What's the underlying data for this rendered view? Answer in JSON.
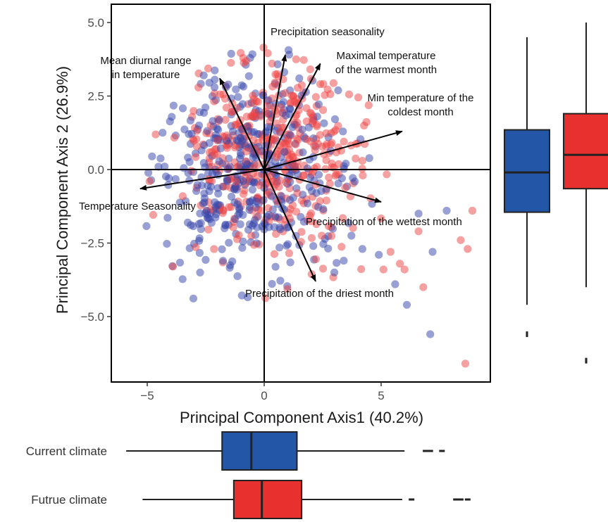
{
  "chart_data": [
    {
      "type": "scatter",
      "subtype": "pca-biplot",
      "xlabel": "Principal Component Axis1 (40.2%)",
      "ylabel": "Principal Component Axis 2 (26.9%)",
      "xlim": [
        -6.4,
        9.6
      ],
      "ylim": [
        -7.2,
        5.4
      ],
      "x_ticks": [
        -5,
        0,
        5
      ],
      "x_tick_labels": [
        "−5",
        "0",
        "5"
      ],
      "y_ticks": [
        5,
        2.5,
        0,
        -2.5,
        -5
      ],
      "y_tick_labels": [
        "5.0",
        "2.5",
        "0.0",
        "−2.5",
        "−5.0"
      ],
      "grid": false,
      "reference_lines": {
        "x": 0,
        "y": 0
      },
      "series_colors": {
        "current": "#3344aa",
        "future": "#ee4444"
      },
      "point_alpha": 0.5,
      "loadings": [
        {
          "label": "Precipitation seasonality",
          "x": 0.9,
          "y": 3.9
        },
        {
          "label": "Mean diurnal range in temperature",
          "x": -1.9,
          "y": 3.1
        },
        {
          "label": "Maximal temperature of the warmest month",
          "x": 2.4,
          "y": 3.6
        },
        {
          "label": "Min temperature of the coldest month",
          "x": 5.9,
          "y": 1.3
        },
        {
          "label": "Temperature Seasonality",
          "x": -5.3,
          "y": -0.65
        },
        {
          "label": "Precipitation of the wettest month",
          "x": 5.0,
          "y": -1.1
        },
        {
          "label": "Precipitation of the driest month",
          "x": 2.2,
          "y": -3.8
        }
      ],
      "loading_label_lines": [
        [
          "Precipitation seasonality"
        ],
        [
          "Mean diurnal range",
          "in temperature"
        ],
        [
          "Maximal temperature",
          "of the warmest month"
        ],
        [
          "Min temperature of the",
          "coldest month"
        ],
        [
          "Temperature Seasonality"
        ],
        [
          "Precipitation of the wettest month"
        ],
        [
          "Precipitation of the driest month"
        ]
      ]
    },
    {
      "type": "boxplot",
      "orientation": "vertical",
      "variable": "PC2",
      "groups": [
        {
          "name": "Current climate",
          "color": "#2356a6",
          "whisker_low": -4.6,
          "q1": -1.45,
          "median": -0.1,
          "q3": 1.35,
          "whisker_high": 4.5,
          "outliers": [
            -5.6
          ]
        },
        {
          "name": "Futrue climate",
          "color": "#e8312f",
          "whisker_low": -4.0,
          "q1": -0.65,
          "median": 0.5,
          "q3": 1.9,
          "whisker_high": 5.0,
          "outliers": [
            -6.5
          ]
        }
      ]
    },
    {
      "type": "boxplot",
      "orientation": "horizontal",
      "variable": "PC1",
      "groups": [
        {
          "name": "Current climate",
          "color": "#2356a6",
          "whisker_low": -5.9,
          "q1": -1.8,
          "median": -0.55,
          "q3": 1.4,
          "whisker_high": 6.0,
          "outliers": [
            6.9,
            7.1,
            7.6
          ]
        },
        {
          "name": "Futrue climate",
          "color": "#e8312f",
          "whisker_low": -5.2,
          "q1": -1.3,
          "median": -0.1,
          "q3": 1.6,
          "whisker_high": 5.9,
          "outliers": [
            6.3,
            8.2,
            8.4,
            8.7
          ]
        }
      ]
    }
  ]
}
